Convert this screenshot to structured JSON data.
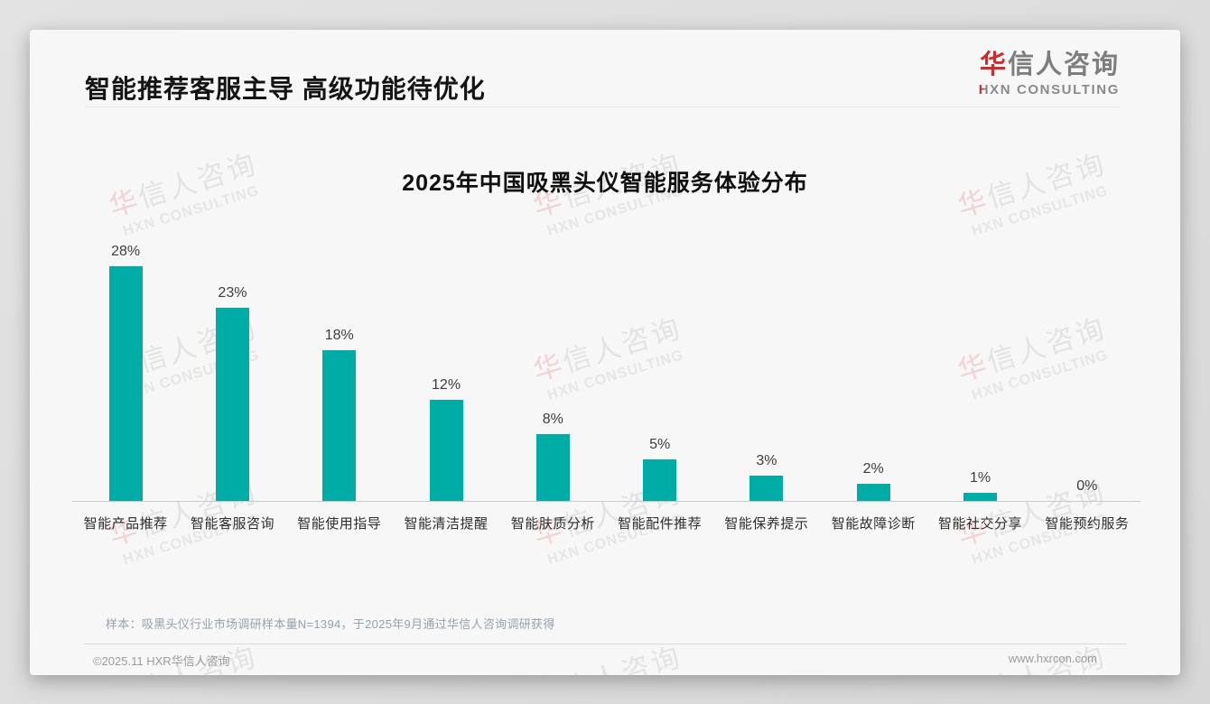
{
  "page": {
    "slide_title": "智能推荐客服主导 高级功能待优化",
    "logo": {
      "cn_first": "华",
      "cn_rest": "信人咨询",
      "en_first": "H",
      "en_rest": "XN CONSULTING"
    },
    "watermark": {
      "cn_first": "华",
      "cn_rest": "信人咨询",
      "en": "HXN CONSULTING"
    },
    "sample_note": "样本：吸黑头仪行业市场调研样本量N=1394，于2025年9月通过华信人咨询调研获得",
    "footer": {
      "copyright": "©2025.11 HXR华信人咨询",
      "website": "www.hxrcon.com"
    }
  },
  "chart_data": {
    "type": "bar",
    "title": "2025年中国吸黑头仪智能服务体验分布",
    "categories": [
      "智能产品推荐",
      "智能客服咨询",
      "智能使用指导",
      "智能清洁提醒",
      "智能肤质分析",
      "智能配件推荐",
      "智能保养提示",
      "智能故障诊断",
      "智能社交分享",
      "智能预约服务"
    ],
    "values": [
      28,
      23,
      18,
      12,
      8,
      5,
      3,
      2,
      1,
      0
    ],
    "value_labels": [
      "28%",
      "23%",
      "18%",
      "12%",
      "8%",
      "5%",
      "3%",
      "2%",
      "1%",
      "0%"
    ],
    "unit": "%",
    "ylim": [
      0,
      30
    ],
    "bar_color": "#00ADA6",
    "grid": false,
    "legend": "none",
    "xlabel": "",
    "ylabel": ""
  },
  "colors": {
    "accent_teal": "#00ADA6",
    "logo_red": "#C5302F",
    "card_bg": "#F7F7F7",
    "note_gray_blue": "#97A1AD",
    "footer_gray": "#9B9B9B"
  }
}
